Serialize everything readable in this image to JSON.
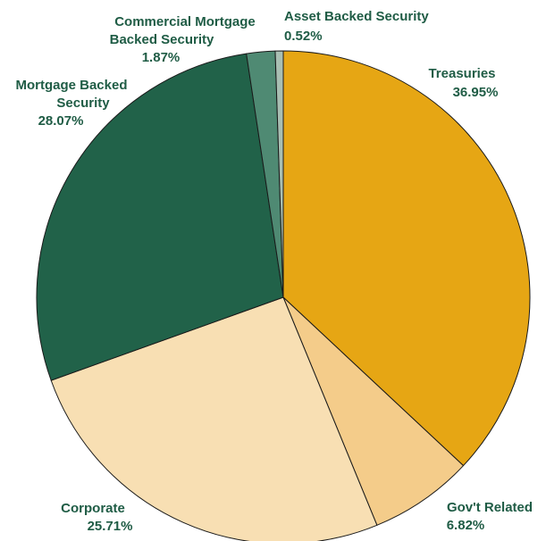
{
  "chart_data": {
    "type": "pie",
    "title": "",
    "slices": [
      {
        "label_lines": [
          "Treasuries"
        ],
        "value": 36.95,
        "value_label": "36.95%",
        "color": "#e6a614"
      },
      {
        "label_lines": [
          "Gov't Related"
        ],
        "value": 6.82,
        "value_label": "6.82%",
        "color": "#f4cc8a"
      },
      {
        "label_lines": [
          "Corporate"
        ],
        "value": 25.71,
        "value_label": "25.71%",
        "color": "#f8dfb3"
      },
      {
        "label_lines": [
          "Mortgage Backed",
          "Security"
        ],
        "value": 28.07,
        "value_label": "28.07%",
        "color": "#216249"
      },
      {
        "label_lines": [
          "Commercial Mortgage",
          "Backed Security"
        ],
        "value": 1.87,
        "value_label": "1.87%",
        "color": "#4f8a73"
      },
      {
        "label_lines": [
          "Asset Backed Security"
        ],
        "value": 0.52,
        "value_label": "0.52%",
        "color": "#a9bfb3"
      }
    ],
    "start_angle": "12 o'clock",
    "direction": "clockwise",
    "label_color": "#1f5c45",
    "legend": "none (direct labels)"
  }
}
